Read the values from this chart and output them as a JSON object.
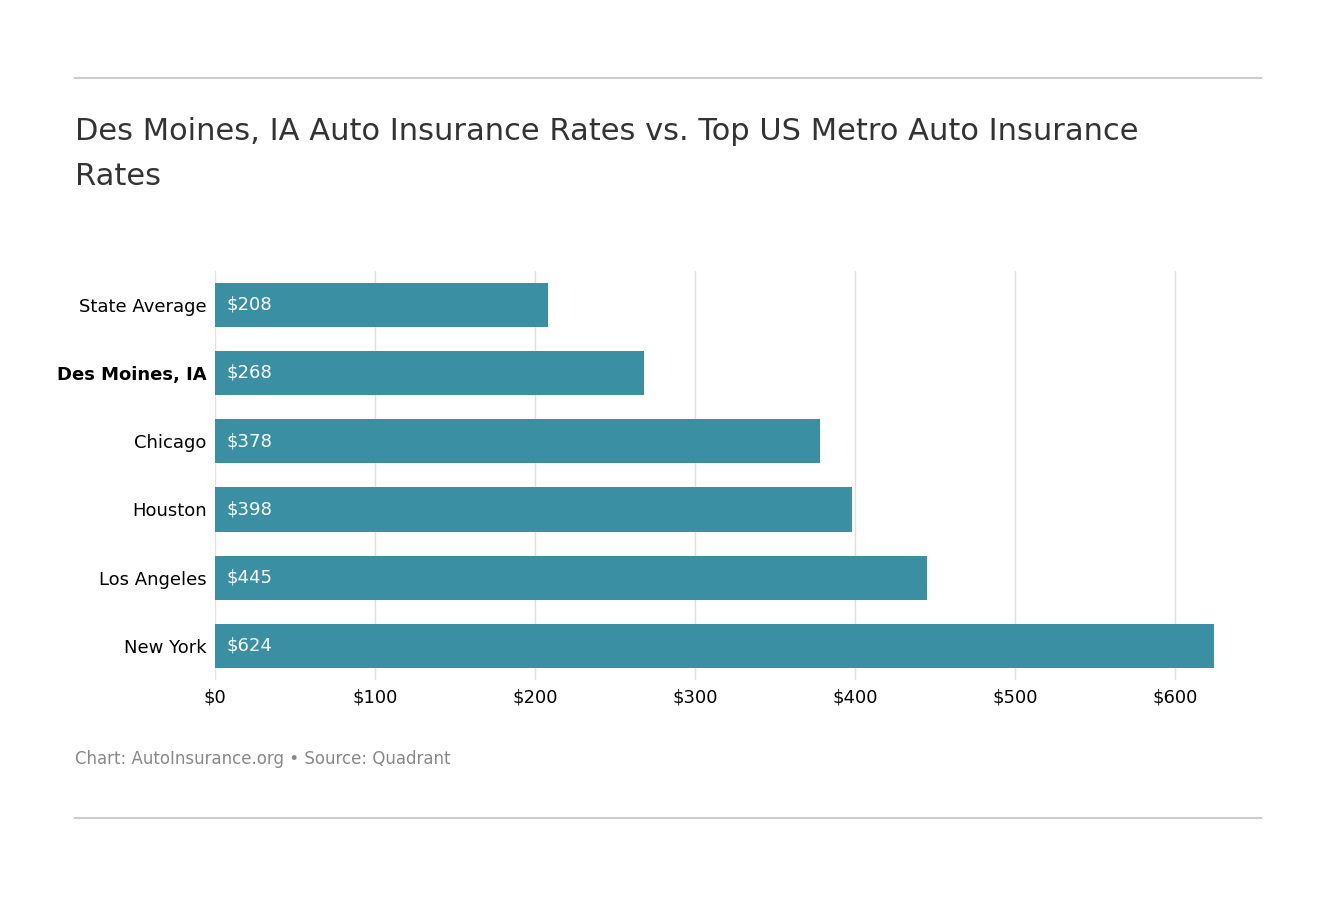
{
  "title_line1": "Des Moines, IA Auto Insurance Rates vs. Top US Metro Auto Insurance",
  "title_line2": "Rates",
  "categories": [
    "State Average",
    "Des Moines, IA",
    "Chicago",
    "Houston",
    "Los Angeles",
    "New York"
  ],
  "values": [
    208,
    268,
    378,
    398,
    445,
    624
  ],
  "bar_color": "#3a8fa3",
  "label_color": "#ffffff",
  "title_fontsize": 22,
  "bar_label_fontsize": 13,
  "tick_fontsize": 13,
  "bold_category": "Des Moines, IA",
  "xlim": [
    0,
    660
  ],
  "xtick_values": [
    0,
    100,
    200,
    300,
    400,
    500,
    600
  ],
  "xtick_labels": [
    "$0",
    "$100",
    "$200",
    "$300",
    "$400",
    "$500",
    "$600"
  ],
  "footer_text": "Chart: AutoInsurance.org • Source: Quadrant",
  "footer_fontsize": 12,
  "background_color": "#ffffff",
  "line_color": "#cccccc",
  "axis_text_color": "#333333",
  "footer_color": "#888888"
}
